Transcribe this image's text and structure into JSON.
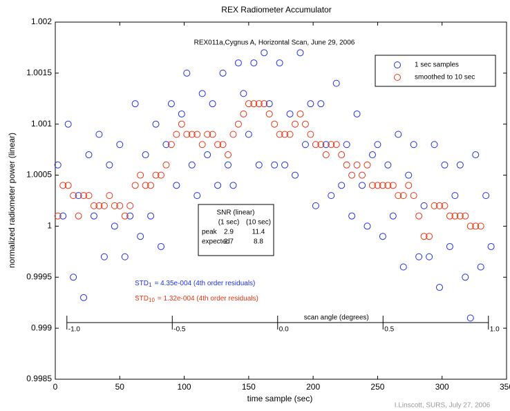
{
  "chart_data": {
    "type": "scatter",
    "title": "REX Radiometer Accumulator",
    "subtitle": "REX011a,Cygnus A, Horizontal Scan, June 29, 2006",
    "x_label": "time sample (sec)",
    "y_label": "normalized radiometer power (linear)",
    "credit": "I.Linscott, SURS, July 27, 2006",
    "xlim": [
      0,
      350
    ],
    "xticks": [
      0,
      50,
      100,
      150,
      200,
      250,
      300,
      350
    ],
    "ylim": [
      0.9985,
      1.002
    ],
    "yticks": [
      0.9985,
      0.999,
      0.9995,
      1,
      1.0005,
      1.001,
      1.0015,
      1.002
    ],
    "legend_position": "upper right",
    "x": [
      2,
      6,
      10,
      14,
      18,
      22,
      26,
      30,
      34,
      38,
      42,
      46,
      50,
      54,
      58,
      62,
      66,
      70,
      74,
      78,
      82,
      86,
      90,
      94,
      98,
      102,
      106,
      110,
      114,
      118,
      122,
      126,
      130,
      134,
      138,
      142,
      146,
      150,
      154,
      158,
      162,
      166,
      170,
      174,
      178,
      182,
      186,
      190,
      194,
      198,
      202,
      206,
      210,
      214,
      218,
      222,
      226,
      230,
      234,
      238,
      242,
      246,
      250,
      254,
      258,
      262,
      266,
      270,
      274,
      278,
      282,
      286,
      290,
      294,
      298,
      302,
      306,
      310,
      314,
      318,
      322,
      326,
      330,
      334,
      338
    ],
    "series": [
      {
        "name": "1 sec samples",
        "color": "#1f2fe6",
        "values": [
          1.0006,
          1.0001,
          1.001,
          0.9995,
          1.0003,
          0.9993,
          1.0007,
          1.0001,
          1.0009,
          0.9997,
          1.0006,
          1,
          1.0008,
          0.9997,
          1.0001,
          1.0012,
          0.9999,
          1.0007,
          1.0001,
          1.001,
          0.9998,
          1.0008,
          1.0012,
          1.0004,
          1.0011,
          1.0015,
          1.0006,
          1.0003,
          1.0013,
          1.0007,
          1.0012,
          1.0004,
          1.0015,
          1.0006,
          1.0004,
          1.0016,
          1.0013,
          1.0009,
          1.0016,
          1.0006,
          1.0017,
          1.0012,
          1.0006,
          1.0016,
          1.0006,
          1.0011,
          1.0005,
          1.0017,
          1.0008,
          1.0012,
          1.0002,
          1.0012,
          1.0008,
          1.0003,
          1.0014,
          1.0004,
          1.0008,
          1.0001,
          1.0011,
          1.0004,
          1,
          1.0007,
          1.0008,
          0.9999,
          1.0006,
          1.0001,
          1.0009,
          0.9996,
          1.0005,
          1.0008,
          0.9997,
          1.0002,
          0.9997,
          1.0008,
          0.9994,
          1.0006,
          0.9998,
          1.0003,
          1.0006,
          0.9995,
          0.9991,
          1.0007,
          0.9996,
          1.0003,
          0.9998
        ]
      },
      {
        "name": "smoothed to 10 sec",
        "color": "#ee3311",
        "values": [
          1.0001,
          1.0004,
          1.0004,
          1.0003,
          1.0001,
          1.0003,
          1.0003,
          1.0002,
          1.0002,
          1.0002,
          1.0003,
          1.0002,
          1.0002,
          1.0001,
          1.0002,
          1.0004,
          1.0005,
          1.0004,
          1.0004,
          1.0005,
          1.0005,
          1.0006,
          1.0008,
          1.0009,
          1.001,
          1.0009,
          1.0009,
          1.0009,
          1.0008,
          1.0009,
          1.0009,
          1.0008,
          1.0008,
          1.0007,
          1.0009,
          1.001,
          1.0011,
          1.0012,
          1.0012,
          1.0012,
          1.0012,
          1.0011,
          1.001,
          1.0009,
          1.0009,
          1.0009,
          1.001,
          1.0011,
          1.001,
          1.0009,
          1.0008,
          1.0008,
          1.0007,
          1.0008,
          1.0008,
          1.0007,
          1.0006,
          1.0005,
          1.0006,
          1.0005,
          1.0006,
          1.0004,
          1.0004,
          1.0004,
          1.0004,
          1.0004,
          1.0003,
          1.0003,
          1.0004,
          1.0003,
          1.0001,
          0.9999,
          0.9999,
          1.0002,
          1.0002,
          1.0002,
          1.0001,
          1.0001,
          1.0001,
          1.0001,
          1,
          1,
          1,
          null,
          null
        ]
      }
    ],
    "snr_box": {
      "title": "SNR (linear)",
      "columns": [
        "(1 sec)",
        "(10 sec)"
      ],
      "rows": [
        {
          "label": "peak",
          "values": [
            2.9,
            11.4
          ]
        },
        {
          "label": "expected",
          "values": [
            2.7,
            8.8
          ]
        }
      ]
    },
    "annotations": [
      {
        "text": "STD",
        "sub": "1",
        "rest": "= 4.35e-004 (4th order residuals)",
        "color": "#1f2fe6"
      },
      {
        "text": "STD",
        "sub": "10",
        "rest": "= 1.32e-004 (4th order residuals)",
        "color": "#ee3311"
      }
    ],
    "scan_axis": {
      "label": "scan angle (degrees)",
      "xlim": [
        -1.055,
        1.086
      ],
      "ticks": [
        {
          "value": -1,
          "label": "-1.0"
        },
        {
          "value": -0.5,
          "label": "-0.5"
        },
        {
          "value": 0,
          "label": "0.0"
        },
        {
          "value": 0.5,
          "label": "0.5"
        },
        {
          "value": 1,
          "label": "1.0"
        }
      ]
    }
  }
}
